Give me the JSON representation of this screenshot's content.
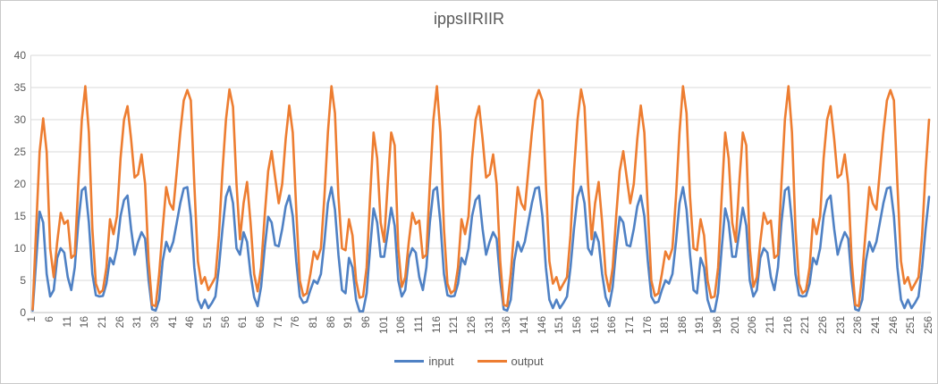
{
  "chart_data": {
    "type": "line",
    "title": "ippsIIRIIR",
    "xlabel": "",
    "ylabel": "",
    "ylim": [
      0,
      40
    ],
    "y_ticks": [
      0,
      5,
      10,
      15,
      20,
      25,
      30,
      35,
      40
    ],
    "x_count": 256,
    "x_tick_labels": [
      "1",
      "6",
      "11",
      "16",
      "21",
      "26",
      "31",
      "36",
      "41",
      "46",
      "51",
      "56",
      "61",
      "66",
      "71",
      "76",
      "81",
      "86",
      "91",
      "96",
      "101",
      "106",
      "111",
      "116",
      "121",
      "126",
      "131",
      "136",
      "141",
      "146",
      "151",
      "156",
      "161",
      "166",
      "171",
      "176",
      "181",
      "186",
      "191",
      "196",
      "201",
      "206",
      "211",
      "216",
      "221",
      "226",
      "231",
      "236",
      "241",
      "246",
      "251",
      "256"
    ],
    "grid": "horizontal",
    "legend_position": "bottom",
    "colors": {
      "grid": "#d9d9d9",
      "axis": "#bfbfbf",
      "text": "#595959"
    },
    "series": [
      {
        "name": "input",
        "color": "#4f81c4",
        "values": [
          0.3,
          8,
          15.7,
          14,
          6,
          2.5,
          3.5,
          8.5,
          10,
          9.3,
          5.5,
          3.5,
          7,
          14,
          19,
          19.5,
          14,
          6,
          2.7,
          2.5,
          2.6,
          4.5,
          8.5,
          7.5,
          10,
          15,
          17.5,
          18.2,
          13,
          9,
          11,
          12.5,
          11.5,
          5,
          0.5,
          0.3,
          2,
          8,
          11,
          9.5,
          11,
          14,
          17,
          19.3,
          19.5,
          15,
          7,
          2,
          0.7,
          2,
          0.7,
          1.5,
          2.5,
          7,
          13,
          18,
          19.6,
          17,
          10,
          9,
          12.5,
          11,
          6,
          2.4,
          1,
          4,
          10,
          14.9,
          14,
          10.5,
          10.3,
          13,
          16.5,
          18.2,
          15,
          8,
          2.5,
          1.5,
          1.7,
          3.5,
          5,
          4.5,
          6,
          11,
          17,
          19.5,
          16,
          9,
          3.5,
          3,
          8.5,
          7,
          2,
          0.2,
          0.2,
          3,
          10,
          16.2,
          14,
          8.7,
          8.7,
          12.5,
          16.3,
          13.5,
          5,
          2.5,
          3.5,
          8.5,
          10,
          9.3,
          5.5,
          3.5,
          7,
          14,
          19,
          19.5,
          14,
          6,
          2.7,
          2.5,
          2.6,
          4.5,
          8.5,
          7.5,
          10,
          15,
          17.5,
          18.2,
          13,
          9,
          11,
          12.5,
          11.5,
          5,
          0.5,
          0.3,
          2,
          8,
          11,
          9.5,
          11,
          14,
          17,
          19.3,
          19.5,
          15,
          7,
          2,
          0.7,
          2,
          0.7,
          1.5,
          2.5,
          7,
          13,
          18,
          19.6,
          17,
          10,
          9,
          12.5,
          11,
          6,
          2.4,
          1,
          4,
          10,
          14.9,
          14,
          10.5,
          10.3,
          13,
          16.5,
          18.2,
          15,
          8,
          2.5,
          1.5,
          1.7,
          3.5,
          5,
          4.5,
          6,
          11,
          17,
          19.5,
          16,
          9,
          3.5,
          3,
          8.5,
          7,
          2,
          0.2,
          0.2,
          3,
          10,
          16.2,
          14,
          8.7,
          8.7,
          12.5,
          16.3,
          13.5,
          5,
          2.5,
          3.5,
          8.5,
          10,
          9.3,
          5.5,
          3.5,
          7,
          14,
          19,
          19.5,
          14,
          6,
          2.7,
          2.5,
          2.6,
          4.5,
          8.5,
          7.5,
          10,
          15,
          17.5,
          18.2,
          13,
          9,
          11,
          12.5,
          11.5,
          5,
          0.5,
          0.3,
          2,
          8,
          11,
          9.5,
          11,
          14,
          17,
          19.3,
          19.5,
          15,
          7,
          2,
          0.7,
          2,
          0.7,
          1.5,
          2.5,
          7,
          13,
          18
        ]
      },
      {
        "name": "output",
        "color": "#ed7d31",
        "values": [
          0.5,
          13,
          25,
          30.2,
          25,
          10,
          5.5,
          11,
          15.5,
          13.8,
          14.3,
          8.5,
          9,
          20,
          30,
          35.2,
          28,
          13,
          4.5,
          3,
          3.5,
          7,
          14.5,
          12.2,
          15,
          24,
          30,
          32.1,
          27,
          21,
          21.5,
          24.6,
          20,
          8,
          1.2,
          1,
          6,
          13,
          19.5,
          17,
          16,
          22,
          28,
          33,
          34.6,
          33,
          20,
          8,
          4.5,
          5.5,
          3.5,
          4.5,
          5.5,
          12,
          22,
          30,
          34.7,
          32,
          20,
          11.4,
          17,
          20.3,
          14,
          6,
          3.3,
          7,
          15,
          22,
          25.1,
          21,
          17,
          20,
          27,
          32.2,
          28,
          16,
          5,
          2.6,
          3,
          6,
          9.5,
          8.3,
          10,
          18,
          28,
          35.2,
          31,
          18,
          10,
          9.7,
          14.5,
          12,
          5,
          2.3,
          2.5,
          7,
          18,
          28,
          24,
          14,
          11,
          20,
          28,
          26,
          10,
          4,
          5.5,
          11,
          15.5,
          13.8,
          14.3,
          8.5,
          9,
          20,
          30,
          35.2,
          28,
          13,
          4.5,
          3,
          3.5,
          7,
          14.5,
          12.2,
          15,
          24,
          30,
          32.1,
          27,
          21,
          21.5,
          24.6,
          20,
          8,
          1.2,
          1,
          6,
          13,
          19.5,
          17,
          16,
          22,
          28,
          33,
          34.6,
          33,
          20,
          8,
          4.5,
          5.5,
          3.5,
          4.5,
          5.5,
          12,
          22,
          30,
          34.7,
          32,
          20,
          11.4,
          17,
          20.3,
          14,
          6,
          3.3,
          7,
          15,
          22,
          25.1,
          21,
          17,
          20,
          27,
          32.2,
          28,
          16,
          5,
          2.6,
          3,
          6,
          9.5,
          8.3,
          10,
          18,
          28,
          35.2,
          31,
          18,
          10,
          9.7,
          14.5,
          12,
          5,
          2.3,
          2.5,
          7,
          18,
          28,
          24,
          14,
          11,
          20,
          28,
          26,
          10,
          4,
          5.5,
          11,
          15.5,
          13.8,
          14.3,
          8.5,
          9,
          20,
          30,
          35.2,
          28,
          13,
          4.5,
          3,
          3.5,
          7,
          14.5,
          12.2,
          15,
          24,
          30,
          32.1,
          27,
          21,
          21.5,
          24.6,
          20,
          8,
          1.2,
          1,
          6,
          13,
          19.5,
          17,
          16,
          22,
          28,
          33,
          34.6,
          33,
          20,
          8,
          4.5,
          5.5,
          3.5,
          4.5,
          5.5,
          12,
          22,
          30
        ]
      }
    ]
  }
}
